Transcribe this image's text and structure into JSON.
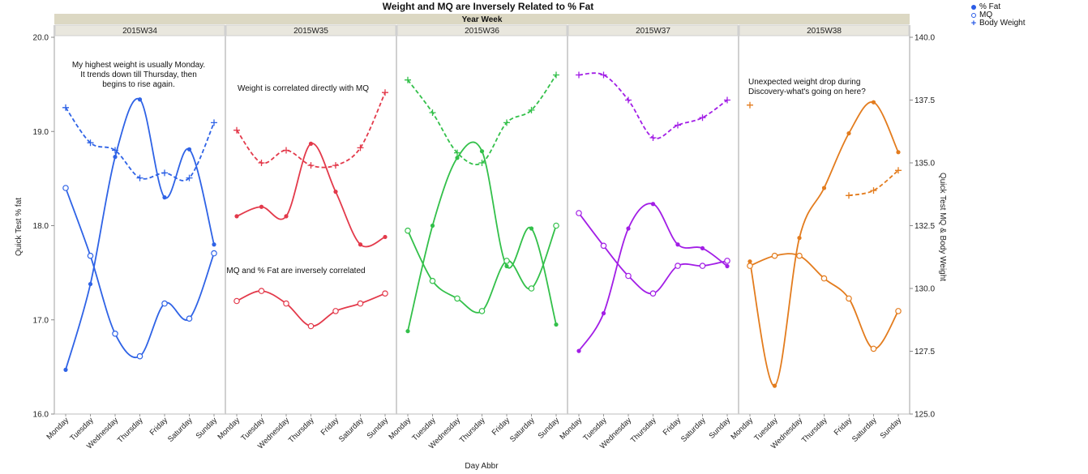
{
  "chart_data": {
    "type": "line",
    "title": "Weight and MQ are Inversely Related to % Fat",
    "group_header": "Year Week",
    "xlabel": "Day Abbr",
    "ylabel_left": "Quick Test % fat",
    "ylabel_right": "Quick Test MQ & Body Weight",
    "ylim_left": [
      16.0,
      20.0
    ],
    "ylim_right": [
      125.0,
      140.0
    ],
    "yticks_left": [
      "16.0",
      "17.0",
      "18.0",
      "19.0",
      "20.0"
    ],
    "yticks_right": [
      "125.0",
      "127.5",
      "130.0",
      "132.5",
      "135.0",
      "137.5",
      "140.0"
    ],
    "categories": [
      "Monday",
      "Tuesday",
      "Wednesday",
      "Thursday",
      "Friday",
      "Saturday",
      "Sunday"
    ],
    "legend": {
      "placement": "top-right",
      "items": [
        {
          "label": "% Fat",
          "marker": "dot"
        },
        {
          "label": "MQ",
          "marker": "circle"
        },
        {
          "label": "Body Weight",
          "marker": "plus"
        }
      ]
    },
    "panels": [
      {
        "week": "2015W34",
        "color": "#2f63e6",
        "fat": [
          16.47,
          17.38,
          18.73,
          19.34,
          18.3,
          18.81,
          17.8
        ],
        "mq": [
          134.0,
          131.3,
          128.2,
          127.3,
          129.4,
          128.8,
          131.4
        ],
        "weight": [
          137.2,
          135.8,
          135.5,
          134.4,
          134.6,
          134.4,
          136.6
        ],
        "annotations": [
          {
            "lines": [
              "My highest weight is usually Monday.",
              "It trends down till Thursday, then",
              "begins to rise again."
            ]
          }
        ]
      },
      {
        "week": "2015W35",
        "color": "#e33a4b",
        "fat": [
          18.1,
          18.2,
          18.1,
          18.87,
          18.36,
          17.8,
          17.88
        ],
        "mq": [
          129.5,
          129.9,
          129.4,
          128.5,
          129.1,
          129.4,
          129.8
        ],
        "weight": [
          136.3,
          135.0,
          135.5,
          134.9,
          134.9,
          135.6,
          137.8
        ],
        "annotations": [
          {
            "lines": [
              "Weight is correlated directly with MQ"
            ]
          },
          {
            "lines": [
              "MQ and % Fat are inversely correlated"
            ]
          }
        ]
      },
      {
        "week": "2015W36",
        "color": "#33c04a",
        "fat": [
          16.88,
          18.0,
          18.72,
          18.79,
          17.57,
          17.97,
          16.95
        ],
        "mq": [
          132.3,
          130.3,
          129.6,
          129.1,
          131.1,
          130.0,
          132.5
        ],
        "weight": [
          138.3,
          137.0,
          135.4,
          135.0,
          136.6,
          137.1,
          138.5
        ],
        "annotations": []
      },
      {
        "week": "2015W37",
        "color": "#a21ee6",
        "fat": [
          16.67,
          17.07,
          17.97,
          18.23,
          17.8,
          17.76,
          17.57
        ],
        "mq": [
          133.0,
          131.7,
          130.5,
          129.8,
          130.9,
          130.9,
          131.1
        ],
        "weight": [
          138.5,
          138.5,
          137.5,
          136.0,
          136.5,
          136.8,
          137.5
        ],
        "annotations": []
      },
      {
        "week": "2015W38",
        "color": "#e37c1e",
        "fat": [
          17.62,
          16.3,
          17.87,
          18.4,
          18.98,
          19.31,
          18.78
        ],
        "mq": [
          130.9,
          131.3,
          131.3,
          130.4,
          129.6,
          127.6,
          129.1
        ],
        "weight": [
          137.3,
          null,
          null,
          null,
          133.7,
          133.9,
          134.7
        ],
        "annotations": [
          {
            "lines": [
              "Unexpected weight drop during",
              "Discovery-what's going on here?"
            ]
          }
        ]
      }
    ]
  }
}
